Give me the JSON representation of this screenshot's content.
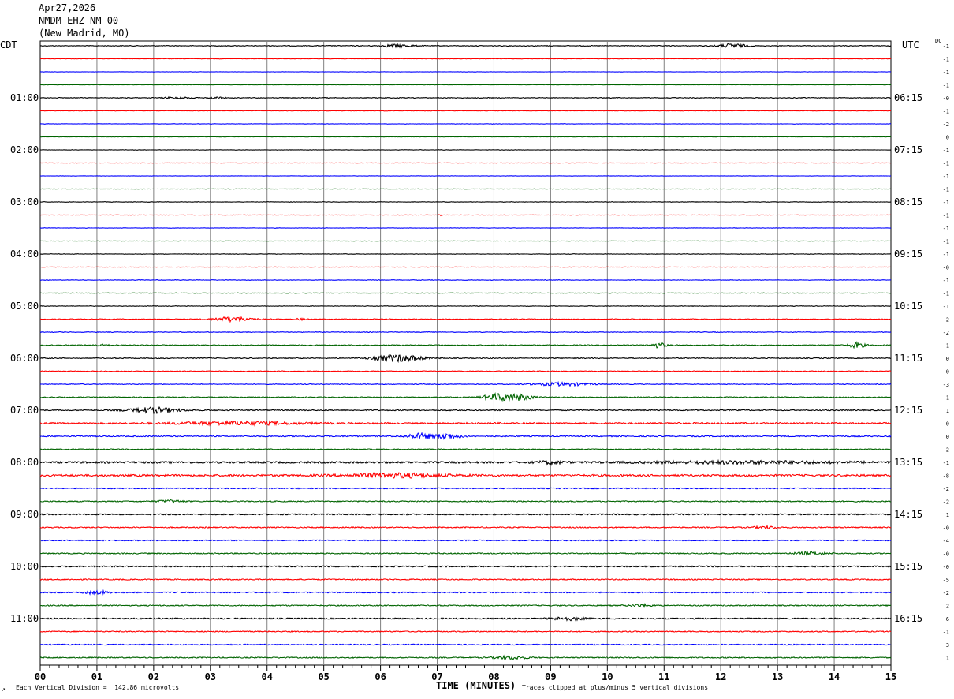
{
  "header": {
    "date": "Apr27,2026",
    "station": "NMDM EHZ NM 00",
    "location": "(New Madrid, MO)"
  },
  "left_zone": "CDT",
  "right_zone": "UTC",
  "dc_label": "DC",
  "footer": {
    "note_left_mark": "↗",
    "vertical_division": "Each Vertical Division =  142.86 microvolts",
    "xlabel": "TIME (MINUTES)",
    "clip_note": "Traces clipped at plus/minus 5 vertical divisions"
  },
  "colors": {
    "trace_cycle": [
      "#000000",
      "#ff0000",
      "#0000ff",
      "#006400"
    ],
    "grid": "#808080"
  },
  "chart_data": {
    "type": "line",
    "title": "NMDM EHZ NM 00",
    "xlabel": "TIME (MINUTES)",
    "xlim": [
      0,
      15
    ],
    "x_ticks": [
      "00",
      "01",
      "02",
      "03",
      "04",
      "05",
      "06",
      "07",
      "08",
      "09",
      "10",
      "11",
      "12",
      "13",
      "14",
      "15"
    ],
    "rows": 48,
    "row_minutes": 15,
    "left_hour_labels": [
      {
        "row": 4,
        "label": "01:00"
      },
      {
        "row": 8,
        "label": "02:00"
      },
      {
        "row": 12,
        "label": "03:00"
      },
      {
        "row": 16,
        "label": "04:00"
      },
      {
        "row": 20,
        "label": "05:00"
      },
      {
        "row": 24,
        "label": "06:00"
      },
      {
        "row": 28,
        "label": "07:00"
      },
      {
        "row": 32,
        "label": "08:00"
      },
      {
        "row": 36,
        "label": "09:00"
      },
      {
        "row": 40,
        "label": "10:00"
      },
      {
        "row": 44,
        "label": "11:00"
      }
    ],
    "right_hour_labels": [
      {
        "row": 4,
        "label": "06:15"
      },
      {
        "row": 8,
        "label": "07:15"
      },
      {
        "row": 12,
        "label": "08:15"
      },
      {
        "row": 16,
        "label": "09:15"
      },
      {
        "row": 20,
        "label": "10:15"
      },
      {
        "row": 24,
        "label": "11:15"
      },
      {
        "row": 28,
        "label": "12:15"
      },
      {
        "row": 32,
        "label": "13:15"
      },
      {
        "row": 36,
        "label": "14:15"
      },
      {
        "row": 40,
        "label": "15:15"
      },
      {
        "row": 44,
        "label": "16:15"
      }
    ],
    "dc_offsets": [
      "-1",
      "-1",
      "-1",
      "-1",
      "-0",
      "-1",
      "-2",
      "0",
      "-1",
      "-1",
      "-1",
      "-1",
      "-1",
      "-1",
      "-1",
      "-1",
      "-1",
      "-0",
      "-1",
      "-1",
      "-1",
      "-2",
      "-2",
      "1",
      "0",
      "0",
      "-3",
      "1",
      "1",
      "-0",
      "0",
      "2",
      "-1",
      "-8",
      "-2",
      "-2",
      "1",
      "-0",
      "-4",
      "-0",
      "-0",
      "-5",
      "-2",
      "2",
      "6",
      "-1",
      "3",
      "1"
    ],
    "noise_level": [
      1,
      0.6,
      0.5,
      0.5,
      1,
      0.6,
      0.6,
      0.5,
      0.6,
      0.5,
      0.5,
      0.5,
      0.7,
      0.5,
      0.6,
      0.5,
      0.7,
      0.5,
      0.8,
      0.7,
      0.8,
      0.9,
      0.9,
      1.2,
      1.2,
      1,
      1,
      1.2,
      1.5,
      2.2,
      1.6,
      1.2,
      2.6,
      2.6,
      1.5,
      1.5,
      1.8,
      1.5,
      1.5,
      1.5,
      1.8,
      1.5,
      1.6,
      1.5,
      1.8,
      1.4,
      1.5,
      1.5
    ],
    "events": [
      {
        "row": 0,
        "minute": 6.3,
        "amp": 4,
        "width": 0.4
      },
      {
        "row": 0,
        "minute": 12.2,
        "amp": 5,
        "width": 0.35
      },
      {
        "row": 4,
        "minute": 2.4,
        "amp": 2.5,
        "width": 0.3
      },
      {
        "row": 4,
        "minute": 3.1,
        "amp": 2,
        "width": 0.2
      },
      {
        "row": 13,
        "minute": 7.05,
        "amp": 2,
        "width": 0.05
      },
      {
        "row": 21,
        "minute": 3.4,
        "amp": 6,
        "width": 0.5
      },
      {
        "row": 21,
        "minute": 4.6,
        "amp": 2,
        "width": 0.15
      },
      {
        "row": 23,
        "minute": 1.1,
        "amp": 2,
        "width": 0.3
      },
      {
        "row": 23,
        "minute": 10.9,
        "amp": 6,
        "width": 0.2
      },
      {
        "row": 23,
        "minute": 14.4,
        "amp": 7,
        "width": 0.2
      },
      {
        "row": 24,
        "minute": 6.3,
        "amp": 9,
        "width": 0.6
      },
      {
        "row": 26,
        "minute": 9.2,
        "amp": 4,
        "width": 0.7
      },
      {
        "row": 27,
        "minute": 8.1,
        "amp": 9,
        "width": 0.4
      },
      {
        "row": 27,
        "minute": 8.5,
        "amp": 6,
        "width": 0.3
      },
      {
        "row": 28,
        "minute": 2.0,
        "amp": 7,
        "width": 0.6
      },
      {
        "row": 29,
        "minute": 3.5,
        "amp": 4,
        "width": 1.5
      },
      {
        "row": 30,
        "minute": 6.7,
        "amp": 7,
        "width": 0.35
      },
      {
        "row": 30,
        "minute": 7.2,
        "amp": 7,
        "width": 0.3
      },
      {
        "row": 32,
        "minute": 9.0,
        "amp": 4,
        "width": 0.3
      },
      {
        "row": 32,
        "minute": 12.5,
        "amp": 3,
        "width": 2.5
      },
      {
        "row": 33,
        "minute": 6.3,
        "amp": 5,
        "width": 1.2
      },
      {
        "row": 35,
        "minute": 2.3,
        "amp": 3,
        "width": 0.3
      },
      {
        "row": 37,
        "minute": 12.8,
        "amp": 3,
        "width": 0.3
      },
      {
        "row": 39,
        "minute": 13.6,
        "amp": 4,
        "width": 0.4
      },
      {
        "row": 42,
        "minute": 1.0,
        "amp": 4,
        "width": 0.3
      },
      {
        "row": 43,
        "minute": 10.6,
        "amp": 3,
        "width": 0.3
      },
      {
        "row": 44,
        "minute": 9.3,
        "amp": 4,
        "width": 0.4
      },
      {
        "row": 47,
        "minute": 8.3,
        "amp": 4,
        "width": 0.4
      }
    ]
  }
}
